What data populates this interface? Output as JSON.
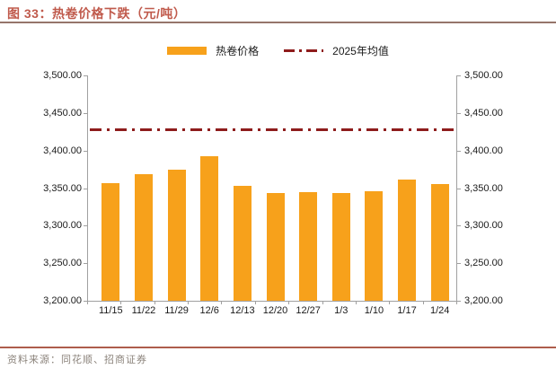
{
  "header": {
    "title": "图 33：热卷价格下跌（元/吨）"
  },
  "legend": {
    "bar_label": "热卷价格",
    "line_label": "2025年均值"
  },
  "footer": {
    "source": "资料来源：同花顺、招商证券"
  },
  "colors": {
    "bar": "#F7A11B",
    "mean_line": "#8E1C1C",
    "title": "#C05A4C",
    "rule_top": "#96756A",
    "rule_bottom": "#AE5D4C",
    "source_text": "#8C847C",
    "axis": "#A0A0A0",
    "tick_label": "#1A1A1A"
  },
  "chart_data": {
    "type": "bar",
    "title": "热卷价格下跌（元/吨）",
    "categories": [
      "11/15",
      "11/22",
      "11/29",
      "12/6",
      "12/13",
      "12/20",
      "12/27",
      "1/3",
      "1/10",
      "1/17",
      "1/24"
    ],
    "series": [
      {
        "name": "热卷价格",
        "type": "bar",
        "values": [
          3356,
          3368,
          3374,
          3392,
          3353,
          3343,
          3345,
          3343,
          3346,
          3361,
          3355
        ]
      },
      {
        "name": "2025年均值",
        "type": "dashed-line",
        "value": 3428
      }
    ],
    "ylim": [
      3200,
      3500
    ],
    "ytick_step": 50,
    "ytick_labels_desc": [
      "3,500.00",
      "3,450.00",
      "3,400.00",
      "3,350.00",
      "3,300.00",
      "3,250.00",
      "3,200.00"
    ],
    "grid": false,
    "dual_axis": true,
    "legend_position": "top"
  }
}
